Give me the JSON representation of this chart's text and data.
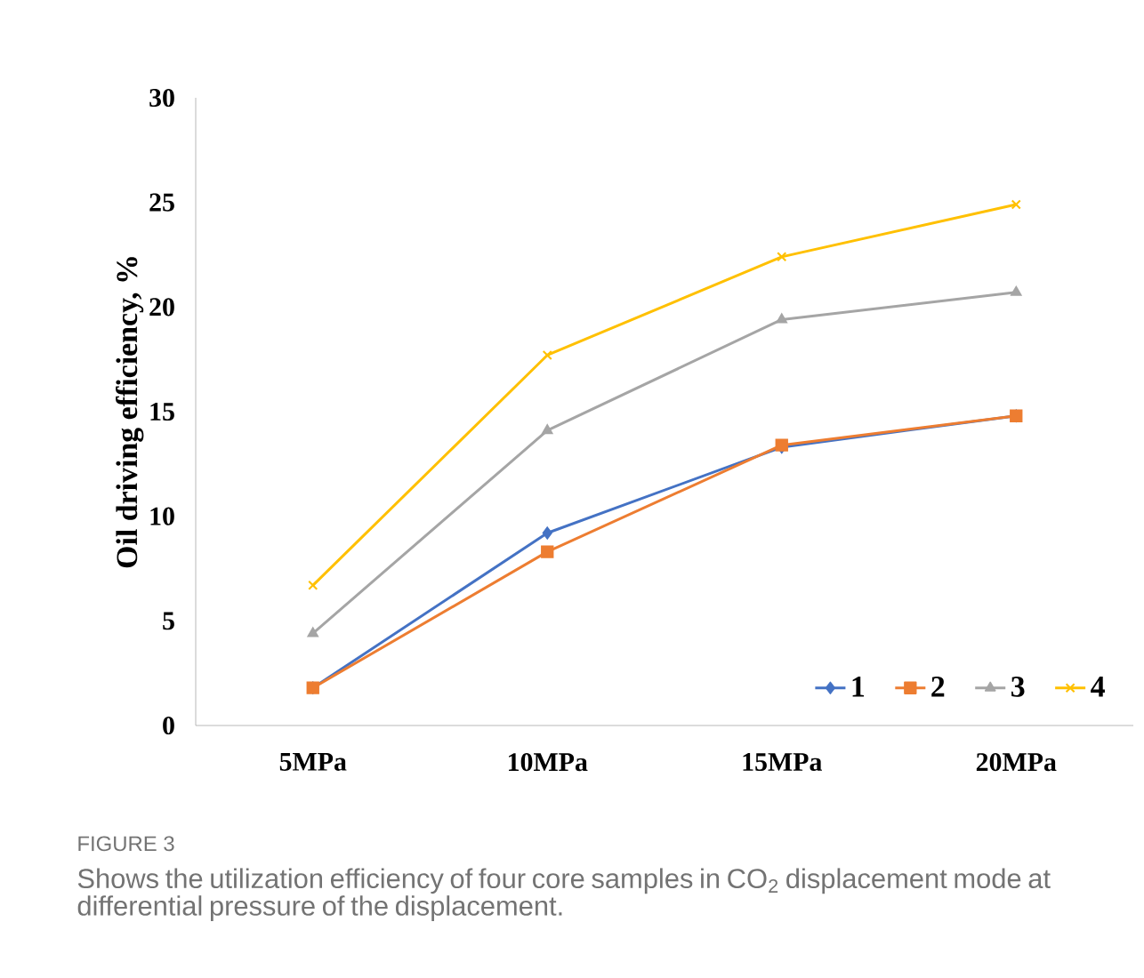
{
  "chart_data": {
    "type": "line",
    "xlabel": null,
    "ylabel": "Oil driving efficiency, %",
    "categories": [
      "5MPa",
      "10MPa",
      "15MPa",
      "20MPa"
    ],
    "series": [
      {
        "name": "1",
        "color": "#4472c4",
        "marker": "diamond",
        "values": [
          1.8,
          9.2,
          13.3,
          14.8
        ]
      },
      {
        "name": "2",
        "color": "#ed7d31",
        "marker": "square",
        "values": [
          1.8,
          8.3,
          13.4,
          14.8
        ]
      },
      {
        "name": "3",
        "color": "#a5a5a5",
        "marker": "triangle",
        "values": [
          4.4,
          14.1,
          19.4,
          20.7
        ]
      },
      {
        "name": "4",
        "color": "#ffc000",
        "marker": "cross",
        "values": [
          6.7,
          17.7,
          22.4,
          24.9
        ]
      }
    ],
    "ylim": [
      0,
      30
    ],
    "yticks": [
      0,
      5,
      10,
      15,
      20,
      25,
      30
    ],
    "grid": false,
    "legend": "bottom right",
    "annotations": [
      "FIGURE 3",
      "Shows the utilization efficiency of four core samples in CO$_{2}$ displacement mode at differential pressure of the displacement."
    ]
  }
}
